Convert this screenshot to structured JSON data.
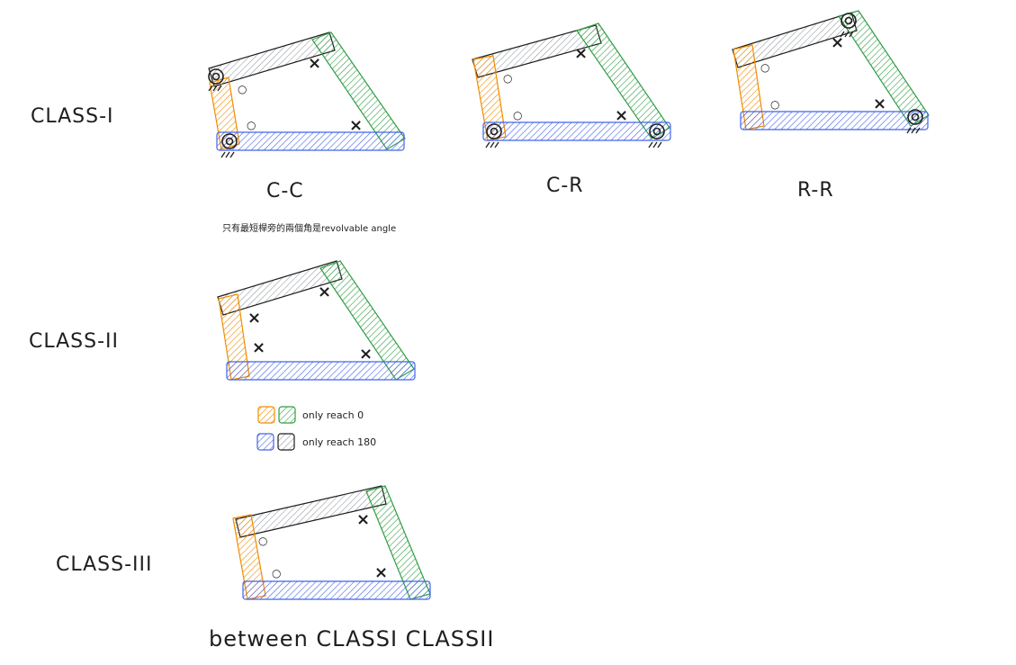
{
  "colors": {
    "orange": "#f08c00",
    "green": "#2f9e44",
    "blue": "#4263eb",
    "gray": "#1e1e1e",
    "ink": "#1e1e1e"
  },
  "icons": {
    "pivot": "ground-pivot-icon",
    "cross": "x-mark",
    "circle": "circle-mark"
  },
  "labels": {
    "class1": "CLASS-I",
    "class2": "CLASS-II",
    "class3": "CLASS-III",
    "cc": "C-C",
    "cr": "C-R",
    "rr": "R-R",
    "note": "只有最短桿旁的兩個角是revolvable angle",
    "legend_0": "only reach 0",
    "legend_180": "only reach 180",
    "bottom": "between CLASSI CLASSII"
  },
  "marks": {
    "cross": "×",
    "circle": "○"
  }
}
